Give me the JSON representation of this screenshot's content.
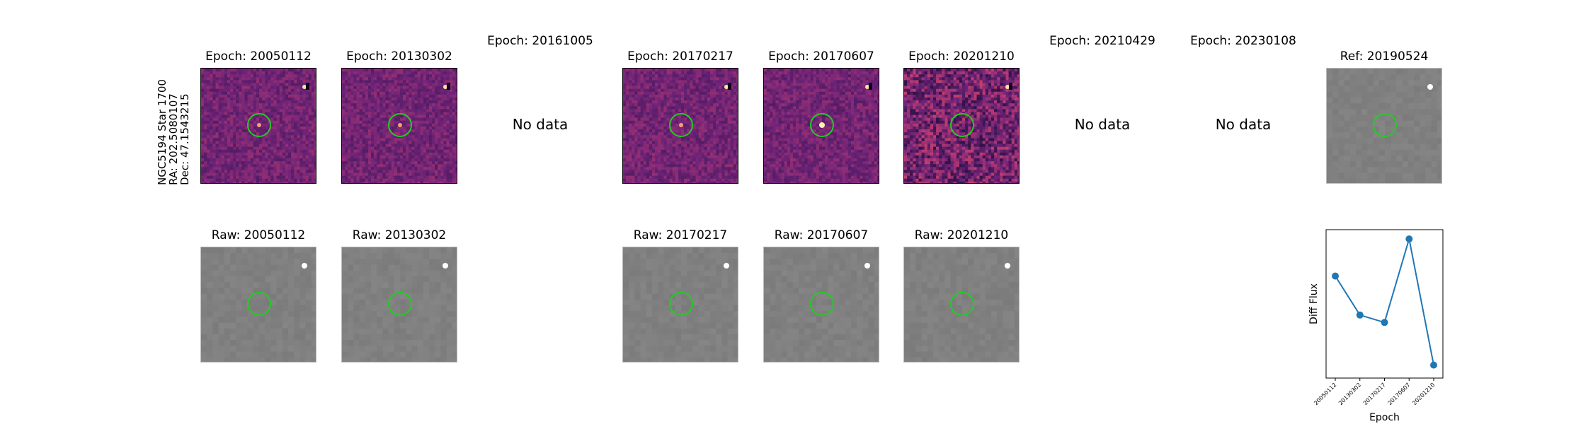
{
  "star": {
    "line1": "NGC5194 Star 1700",
    "line2": "RA: 202.5080107",
    "line3": "Dec: 47.1543215"
  },
  "diff_row": {
    "epochs": [
      {
        "title": "Epoch: 20050112",
        "status": "image"
      },
      {
        "title": "Epoch: 20130302",
        "status": "image"
      },
      {
        "title": "Epoch: 20161005",
        "status": "No data"
      },
      {
        "title": "Epoch: 20170217",
        "status": "image"
      },
      {
        "title": "Epoch: 20170607",
        "status": "image"
      },
      {
        "title": "Epoch: 20201210",
        "status": "image"
      },
      {
        "title": "Epoch: 20210429",
        "status": "No data"
      },
      {
        "title": "Epoch: 20230108",
        "status": "No data"
      }
    ],
    "reference": {
      "title": "Ref: 20190524"
    }
  },
  "raw_row": {
    "panels": [
      {
        "title": "Raw: 20050112"
      },
      {
        "title": "Raw: 20130302"
      },
      {
        "title": "Raw: 20170217"
      },
      {
        "title": "Raw: 20170607"
      },
      {
        "title": "Raw: 20201210"
      }
    ]
  },
  "colors": {
    "aperture": "#22cc22",
    "series": "#1f77b4",
    "raw_background": "#8a8a8a"
  },
  "chart_data": {
    "type": "line",
    "categories": [
      "20050112",
      "20130302",
      "20170217",
      "20170607",
      "20201210"
    ],
    "values": [
      0.55,
      0.34,
      0.3,
      0.75,
      0.07
    ],
    "xlabel": "Epoch",
    "ylabel": "Diff Flux",
    "ylim": [
      0,
      0.8
    ],
    "grid": false
  }
}
